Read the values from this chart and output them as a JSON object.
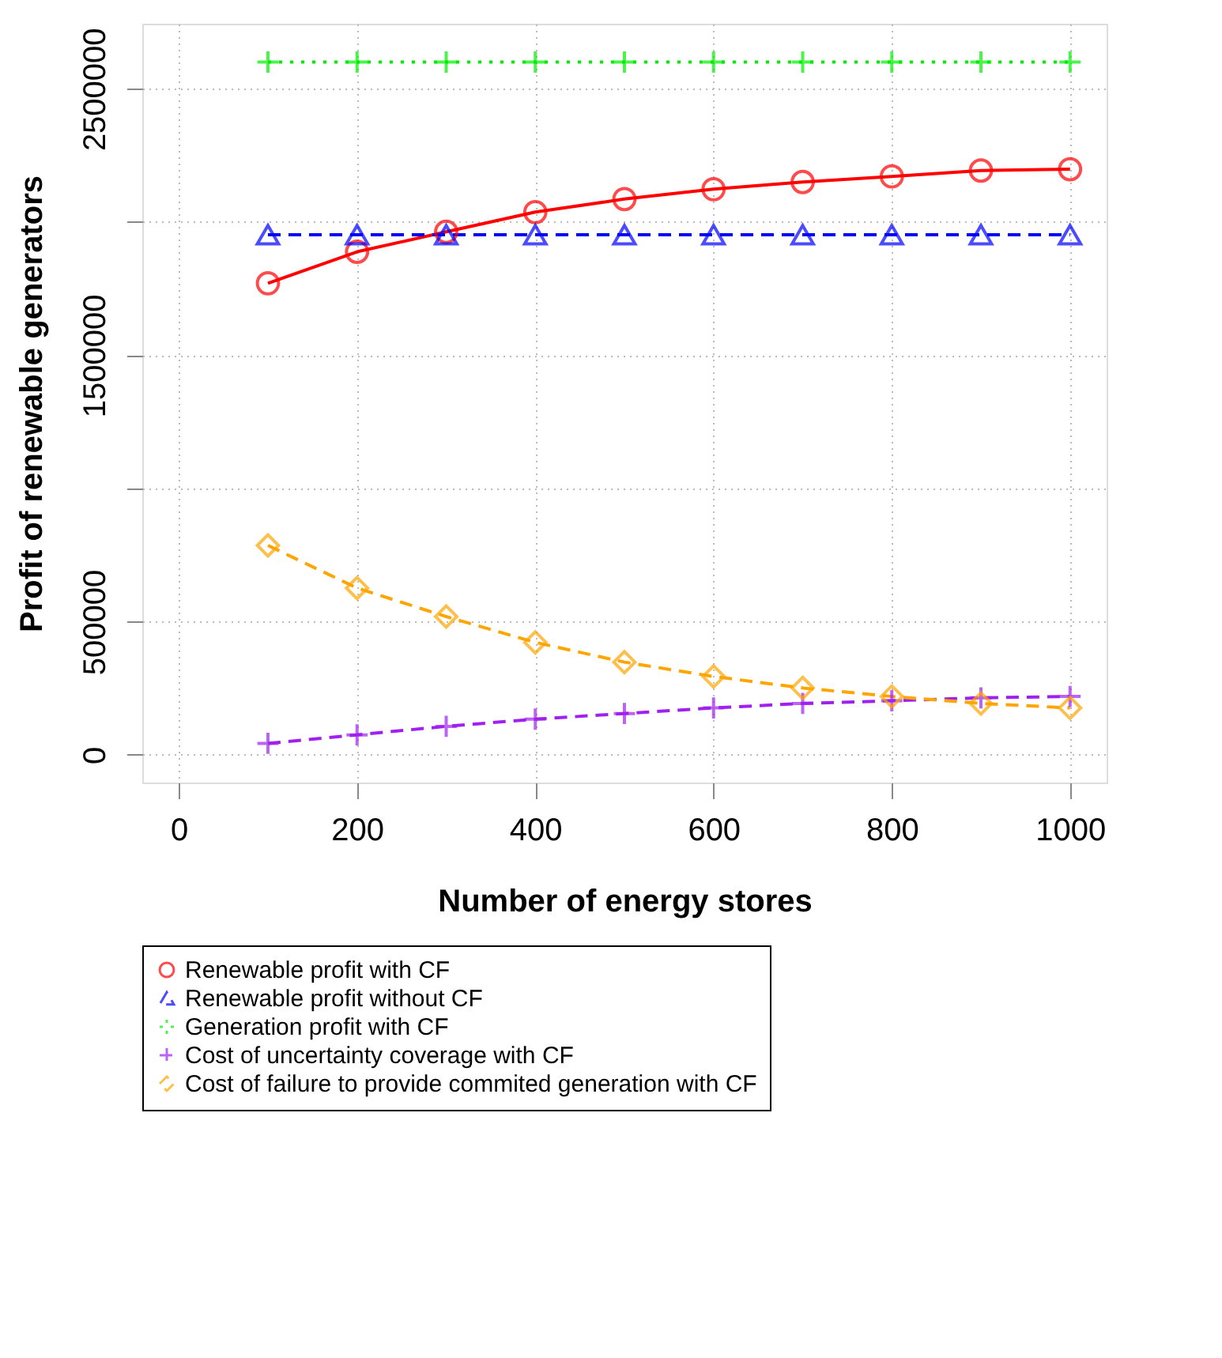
{
  "chart_data": {
    "type": "line",
    "xlabel": "Number of energy stores",
    "ylabel": "Profit of renewable generators",
    "x": [
      100,
      200,
      300,
      400,
      500,
      600,
      700,
      800,
      900,
      1000
    ],
    "series": [
      {
        "name": "Renewable profit with CF",
        "color": "#ff0000",
        "marker": "circle",
        "line_style": "solid",
        "values": [
          1770000,
          1888000,
          1963000,
          2037000,
          2086000,
          2123000,
          2150000,
          2171000,
          2193000,
          2198000
        ]
      },
      {
        "name": "Renewable profit without CF",
        "color": "#0000ff",
        "marker": "triangle",
        "line_style": "dashed",
        "values": [
          1952000,
          1952000,
          1952000,
          1952000,
          1952000,
          1952000,
          1952000,
          1952000,
          1952000,
          1952000
        ]
      },
      {
        "name": "Generation profit with CF",
        "color": "#00ee00",
        "marker": "cross",
        "line_style": "dotted",
        "values": [
          2600000,
          2600000,
          2600000,
          2600000,
          2600000,
          2600000,
          2600000,
          2600000,
          2600000,
          2600000
        ]
      },
      {
        "name": "Cost of uncertainty coverage with CF",
        "color": "#a020f0",
        "marker": "cross",
        "line_style": "dashed",
        "values": [
          43000,
          75000,
          107000,
          134000,
          155000,
          176000,
          193000,
          203000,
          214000,
          219000
        ]
      },
      {
        "name": "Cost of failure to provide commited generation with CF",
        "color": "#ffa500",
        "marker": "diamond",
        "line_style": "dashed",
        "values": [
          786000,
          626000,
          519000,
          422000,
          348000,
          294000,
          251000,
          219000,
          193000,
          176000
        ]
      }
    ],
    "xlim": [
      -41,
      1041
    ],
    "xticks": [
      0,
      200,
      400,
      600,
      800,
      1000
    ],
    "ylim": [
      -104000,
      2744000
    ],
    "yticks": [
      0,
      500000,
      {
        "value": 1000000,
        "label": null
      },
      1500000,
      {
        "value": 2000000,
        "label": null
      },
      2500000
    ],
    "grid": true,
    "legend": "bottom"
  }
}
